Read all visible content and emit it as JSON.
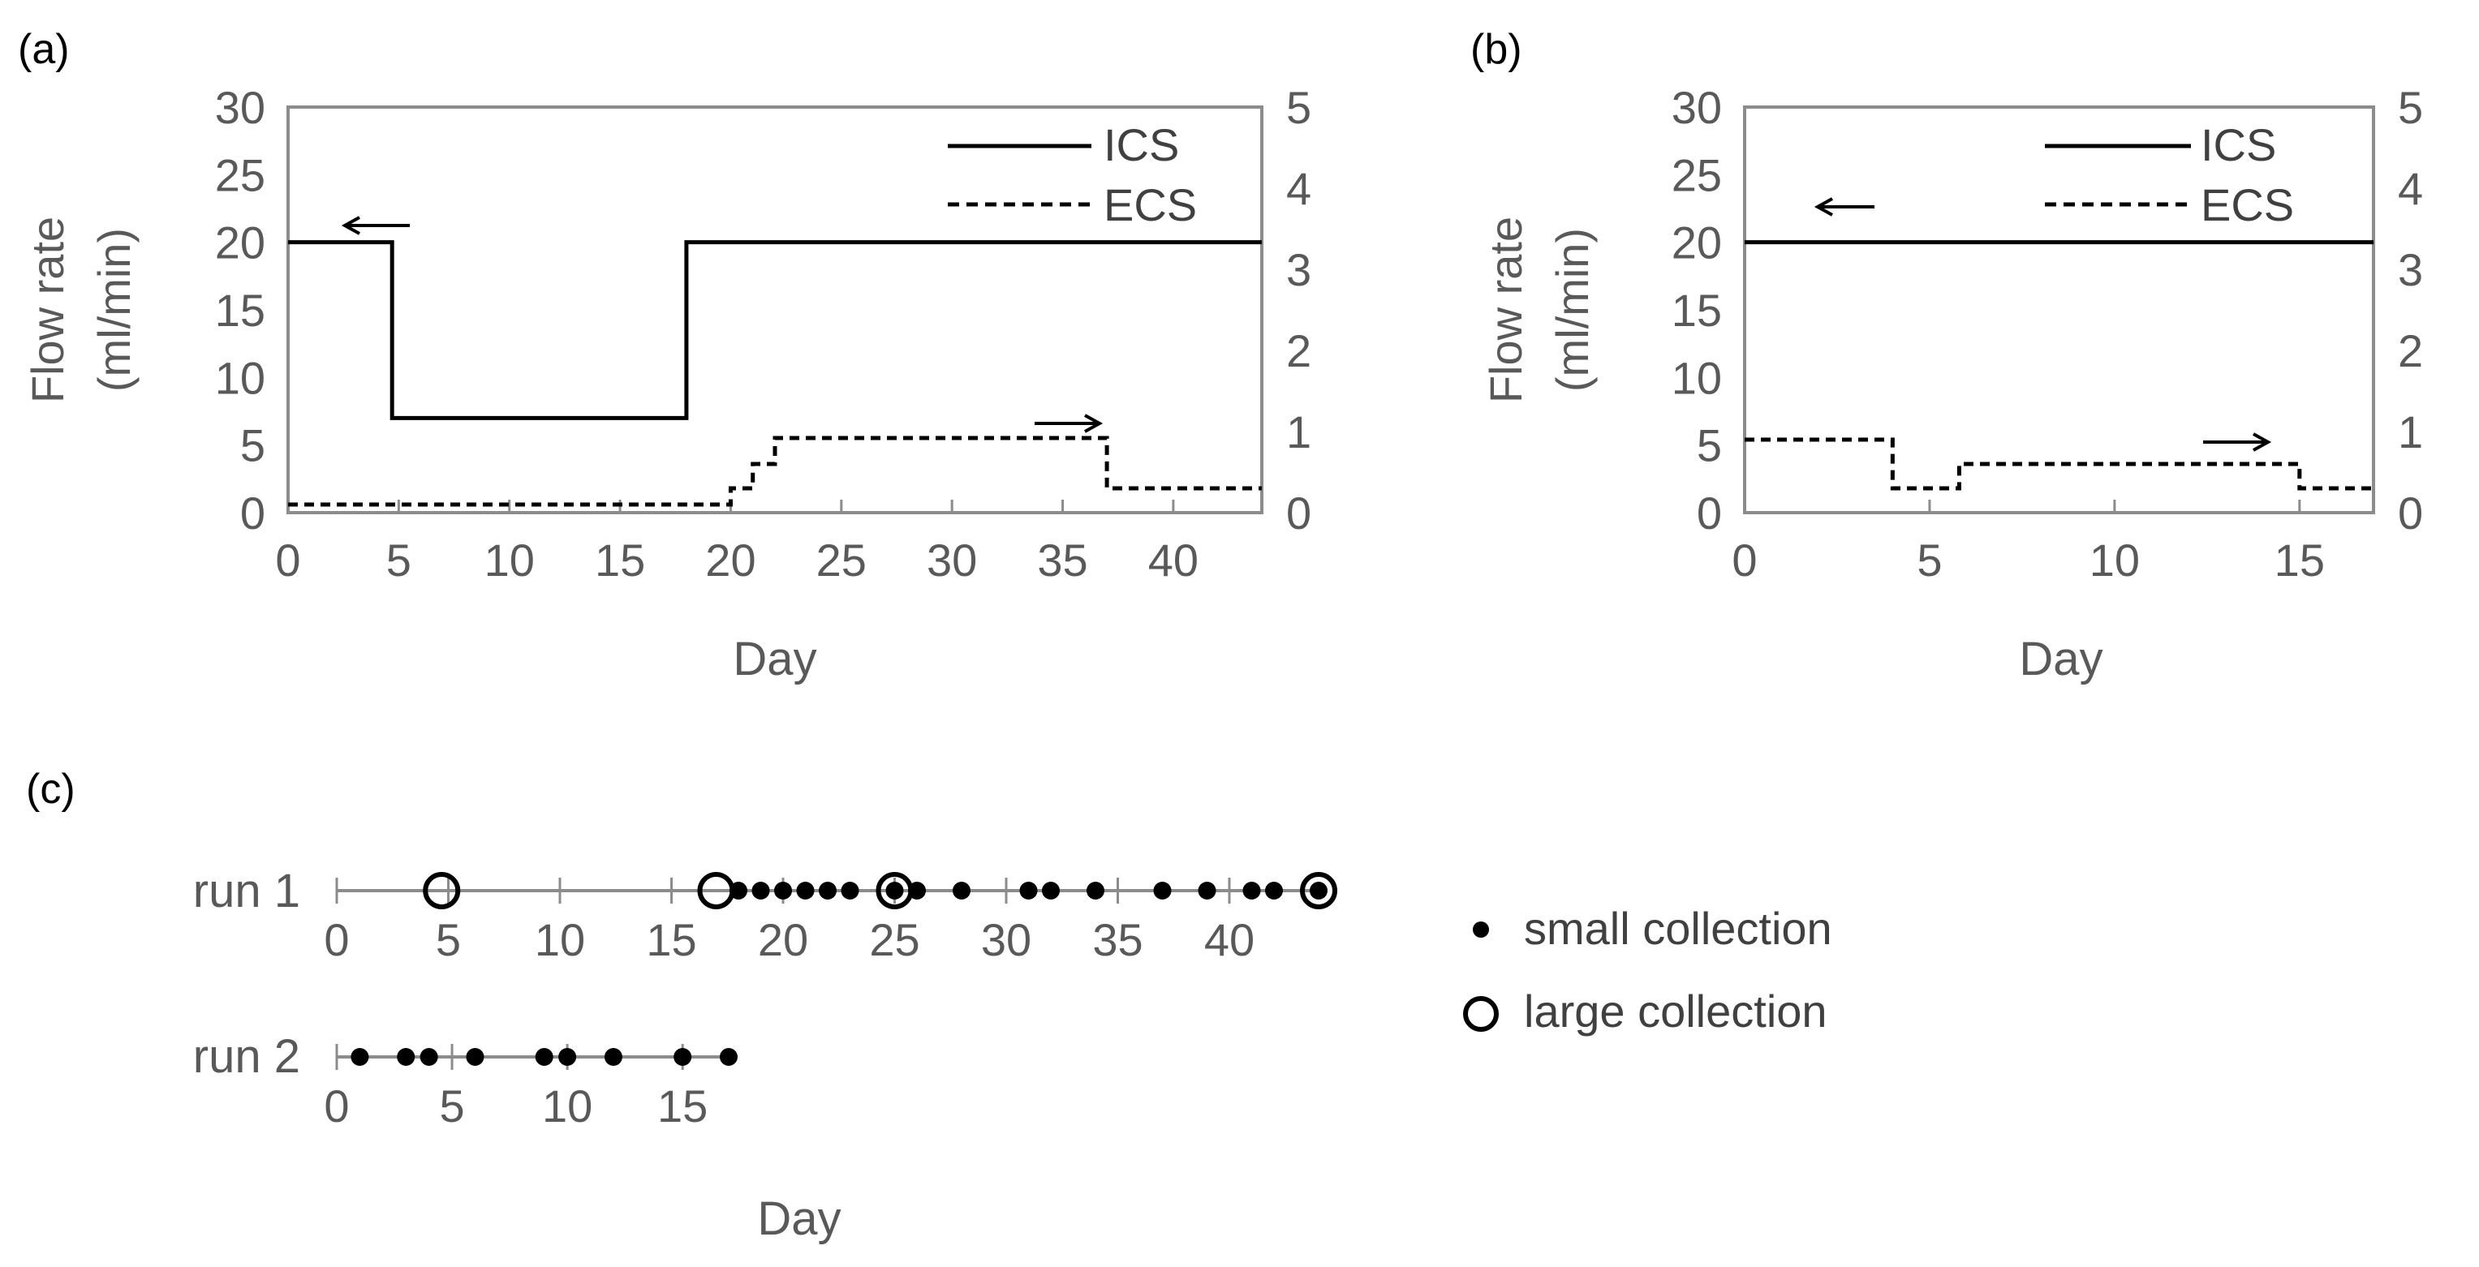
{
  "colors": {
    "axis": "#7f7f7f",
    "text": "#595959",
    "line": "#000000"
  },
  "chart_data": [
    {
      "panel": "(a)",
      "type": "line",
      "xlabel": "Day",
      "ylabel": [
        "Flow rate",
        "(ml/min)"
      ],
      "xlim": [
        0,
        44
      ],
      "ylim": [
        0,
        30
      ],
      "y2lim": [
        0,
        5
      ],
      "xticks": [
        "0",
        "5",
        "10",
        "15",
        "20",
        "25",
        "30",
        "35",
        "40"
      ],
      "yticks": [
        "0",
        "5",
        "10",
        "15",
        "20",
        "25",
        "30"
      ],
      "y2ticks": [
        "0",
        "1",
        "2",
        "3",
        "4",
        "5"
      ],
      "series": [
        {
          "name": "ICS",
          "axis": "left",
          "style": "solid",
          "x": [
            0,
            4.7,
            4.7,
            18,
            18,
            44
          ],
          "y": [
            20,
            20,
            7,
            7,
            20,
            20
          ]
        },
        {
          "name": "ECS",
          "axis": "right",
          "style": "dashed",
          "x": [
            0,
            20,
            20,
            21,
            21,
            22,
            22,
            37,
            37,
            44
          ],
          "y": [
            0.1,
            0.1,
            0.3,
            0.3,
            0.6,
            0.6,
            0.92,
            0.92,
            0.3,
            0.3
          ]
        }
      ],
      "arrows": [
        {
          "dir": "left",
          "axis": "ICS"
        },
        {
          "dir": "right",
          "axis": "ECS"
        }
      ]
    },
    {
      "panel": "(b)",
      "type": "line",
      "xlabel": "Day",
      "ylabel": [
        "Flow rate",
        "(ml/min)"
      ],
      "xlim": [
        0,
        17
      ],
      "ylim": [
        0,
        30
      ],
      "y2lim": [
        0,
        5
      ],
      "xticks": [
        "0",
        "5",
        "10",
        "15"
      ],
      "yticks": [
        "0",
        "5",
        "10",
        "15",
        "20",
        "25",
        "30"
      ],
      "y2ticks": [
        "0",
        "1",
        "2",
        "3",
        "4",
        "5"
      ],
      "series": [
        {
          "name": "ICS",
          "axis": "left",
          "style": "solid",
          "x": [
            0,
            17
          ],
          "y": [
            20,
            20
          ]
        },
        {
          "name": "ECS",
          "axis": "right",
          "style": "dashed",
          "x": [
            0,
            4,
            4,
            5.8,
            5.8,
            15,
            15,
            17
          ],
          "y": [
            0.9,
            0.9,
            0.3,
            0.3,
            0.6,
            0.6,
            0.3,
            0.3
          ]
        }
      ],
      "arrows": [
        {
          "dir": "left",
          "axis": "ICS"
        },
        {
          "dir": "right",
          "axis": "ECS"
        }
      ]
    },
    {
      "panel": "(c)",
      "type": "scatter",
      "xlabel": "Day",
      "runs": [
        {
          "label": "run 1",
          "xlim": [
            0,
            44
          ],
          "xticks": [
            "0",
            "5",
            "10",
            "15",
            "20",
            "25",
            "30",
            "35",
            "40"
          ],
          "small": [
            18,
            19,
            20,
            21,
            22,
            23,
            25,
            26,
            28,
            31,
            32,
            34,
            37,
            39,
            41,
            42,
            44
          ],
          "large": [
            4.7,
            17,
            25,
            44
          ]
        },
        {
          "label": "run 2",
          "xlim": [
            0,
            17
          ],
          "xticks": [
            "0",
            "5",
            "10",
            "15"
          ],
          "small": [
            1,
            3,
            4,
            6,
            9,
            10,
            12,
            15,
            17
          ],
          "large": []
        }
      ],
      "legend": [
        "small collection",
        "large collection"
      ]
    }
  ]
}
